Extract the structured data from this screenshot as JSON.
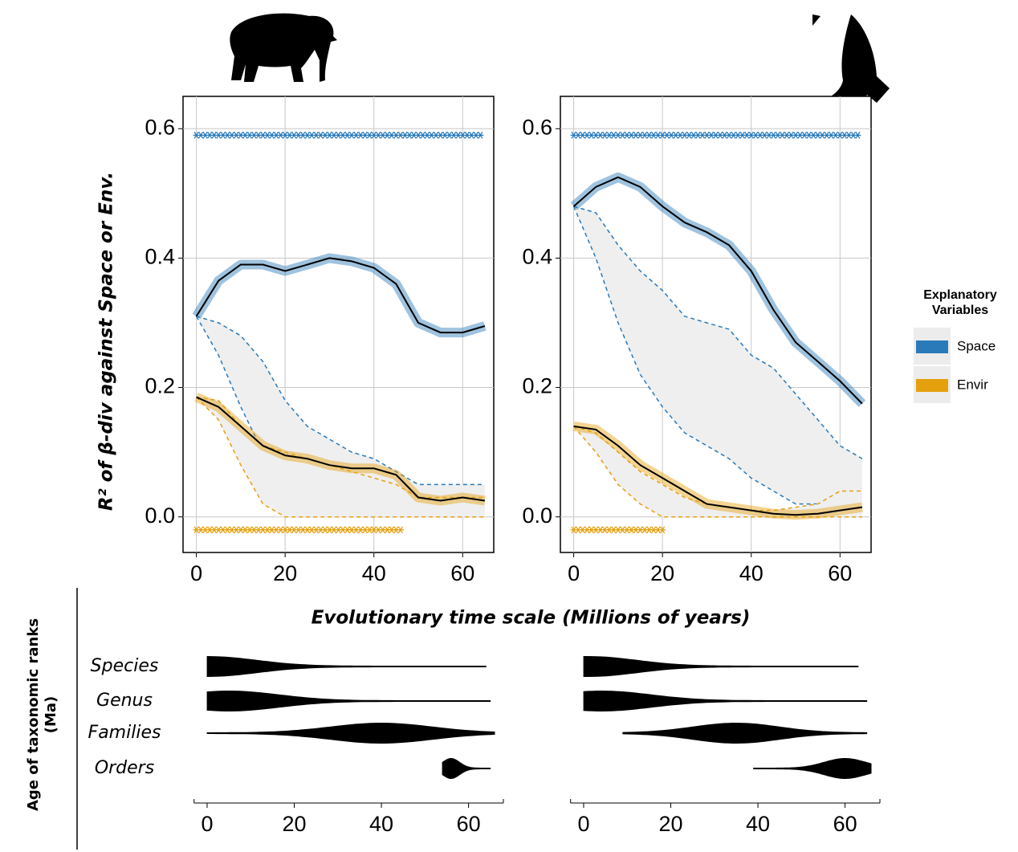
{
  "figure": {
    "y_label": "R² of β-div against Space or Env.",
    "x_label": "Evolutionary time scale (Millions of years)",
    "legend_title": [
      "Explanatory",
      "Variables"
    ],
    "rank_axis_label": [
      "Age of taxonomic ranks",
      "(Ma)"
    ]
  },
  "chart_data": [
    {
      "type": "line",
      "x": [
        0,
        5,
        10,
        15,
        20,
        25,
        30,
        35,
        40,
        45,
        50,
        55,
        60,
        65
      ],
      "xlim": [
        -3,
        67
      ],
      "ylim": [
        -0.055,
        0.65
      ],
      "xticks": [
        0,
        20,
        40,
        60
      ],
      "yticks": [
        {
          "value": 0,
          "label": "0.0"
        },
        {
          "value": 0.2,
          "label": "0.2"
        },
        {
          "value": 0.4,
          "label": "0.4"
        },
        {
          "value": 0.6,
          "label": "0.6"
        }
      ],
      "grid": true,
      "trend_color": "#000000",
      "null_fill": "#efefef",
      "series": [
        {
          "name": "Space",
          "color": "#2a7ab9",
          "values": [
            0.31,
            0.365,
            0.39,
            0.39,
            0.38,
            0.39,
            0.4,
            0.395,
            0.385,
            0.36,
            0.3,
            0.285,
            0.285,
            0.295
          ],
          "null_upper": [
            0.31,
            0.3,
            0.28,
            0.24,
            0.18,
            0.14,
            0.12,
            0.1,
            0.09,
            0.07,
            0.05,
            0.05,
            0.05,
            0.05
          ],
          "null_lower": [
            0.31,
            0.25,
            0.17,
            0.1,
            0.06,
            0.04,
            0.03,
            0.03,
            0.02,
            0.02,
            0.01,
            0.01,
            0.01,
            0.01
          ],
          "sig_x": [
            0,
            64
          ],
          "sig_y": 0.59
        },
        {
          "name": "Envir",
          "color": "#e5a00e",
          "values": [
            0.185,
            0.17,
            0.14,
            0.11,
            0.095,
            0.09,
            0.08,
            0.075,
            0.075,
            0.065,
            0.03,
            0.025,
            0.03,
            0.025
          ],
          "null_upper": [
            0.185,
            0.18,
            0.14,
            0.11,
            0.1,
            0.09,
            0.08,
            0.07,
            0.06,
            0.05,
            0.03,
            0.03,
            0.03,
            0.03
          ],
          "null_lower": [
            0.185,
            0.15,
            0.08,
            0.02,
            0,
            0,
            0,
            0,
            0,
            0,
            0,
            0,
            0,
            0
          ],
          "sig_x": [
            0,
            46
          ],
          "sig_y": -0.02
        }
      ]
    },
    {
      "type": "line",
      "x": [
        0,
        5,
        10,
        15,
        20,
        25,
        30,
        35,
        40,
        45,
        50,
        55,
        60,
        65
      ],
      "xlim": [
        -3,
        67
      ],
      "ylim": [
        -0.055,
        0.65
      ],
      "xticks": [
        0,
        20,
        40,
        60
      ],
      "yticks": [
        {
          "value": 0,
          "label": "0.0"
        },
        {
          "value": 0.2,
          "label": "0.2"
        },
        {
          "value": 0.4,
          "label": "0.4"
        },
        {
          "value": 0.6,
          "label": "0.6"
        }
      ],
      "grid": true,
      "trend_color": "#000000",
      "null_fill": "#efefef",
      "series": [
        {
          "name": "Space",
          "color": "#2a7ab9",
          "values": [
            0.48,
            0.51,
            0.525,
            0.51,
            0.48,
            0.455,
            0.44,
            0.42,
            0.38,
            0.32,
            0.27,
            0.24,
            0.21,
            0.175
          ],
          "null_upper": [
            0.48,
            0.47,
            0.42,
            0.38,
            0.35,
            0.31,
            0.3,
            0.29,
            0.25,
            0.23,
            0.19,
            0.15,
            0.11,
            0.09
          ],
          "null_lower": [
            0.48,
            0.4,
            0.3,
            0.22,
            0.17,
            0.13,
            0.11,
            0.09,
            0.06,
            0.04,
            0.02,
            0.02,
            0.02,
            0.02
          ],
          "sig_x": [
            0,
            64
          ],
          "sig_y": 0.59
        },
        {
          "name": "Envir",
          "color": "#e5a00e",
          "values": [
            0.14,
            0.135,
            0.11,
            0.08,
            0.06,
            0.04,
            0.02,
            0.015,
            0.01,
            0.005,
            0.003,
            0.005,
            0.01,
            0.015
          ],
          "null_upper": [
            0.14,
            0.13,
            0.1,
            0.07,
            0.05,
            0.03,
            0.02,
            0.015,
            0.01,
            0.01,
            0.015,
            0.02,
            0.04,
            0.04
          ],
          "null_lower": [
            0.14,
            0.1,
            0.05,
            0.02,
            0,
            0,
            0,
            0,
            0,
            0,
            0,
            0,
            0,
            0
          ],
          "sig_x": [
            0,
            20
          ],
          "sig_y": -0.02
        }
      ]
    },
    {
      "type": "violin",
      "categories": [
        "Species",
        "Genus",
        "Families",
        "Orders"
      ],
      "xlim": [
        -3,
        68
      ],
      "xticks": [
        0,
        20,
        40,
        60
      ],
      "color": "#000000",
      "min": [
        0,
        0,
        0,
        54
      ],
      "max": [
        64,
        65,
        66,
        65
      ],
      "peak": [
        0,
        5,
        40,
        56
      ]
    },
    {
      "type": "violin",
      "categories": [
        "Species",
        "Genus",
        "Families",
        "Orders"
      ],
      "xlim": [
        -3,
        68
      ],
      "xticks": [
        0,
        20,
        40,
        60
      ],
      "color": "#000000",
      "min": [
        0,
        0,
        9,
        39
      ],
      "max": [
        63,
        65,
        65,
        66
      ],
      "peak": [
        1,
        4,
        35,
        60
      ]
    }
  ]
}
